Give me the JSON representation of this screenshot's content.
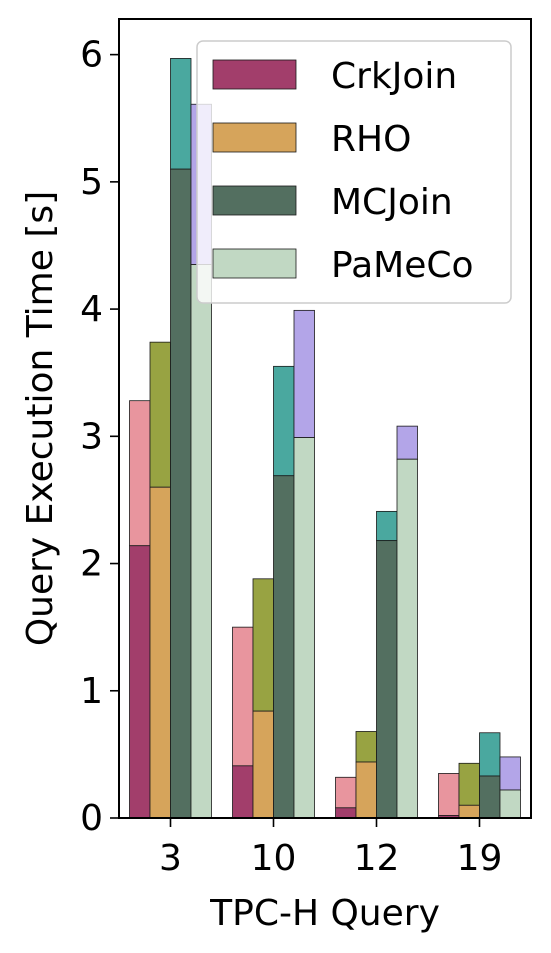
{
  "chart_data": {
    "type": "bar",
    "xlabel": "TPC-H Query",
    "ylabel": "Query Execution Time [s]",
    "categories": [
      "3",
      "10",
      "12",
      "19"
    ],
    "ylim": [
      0,
      6.28
    ],
    "yticks": [
      "0",
      "1",
      "2",
      "3",
      "4",
      "5",
      "6"
    ],
    "grid": false,
    "legend_position": "top-right",
    "series": [
      {
        "name": "CrkJoin",
        "values": [
          2.14,
          0.41,
          0.08,
          0.02
        ],
        "totals": [
          3.28,
          1.5,
          0.32,
          0.35
        ],
        "color": "#a23e6b",
        "top_color": "#e8959e"
      },
      {
        "name": "RHO",
        "values": [
          2.6,
          0.84,
          0.44,
          0.1
        ],
        "totals": [
          3.74,
          1.88,
          0.68,
          0.43
        ],
        "color": "#d6a45b",
        "top_color": "#98a342"
      },
      {
        "name": "MCJoin",
        "values": [
          5.1,
          2.69,
          2.18,
          0.33
        ],
        "totals": [
          5.97,
          3.55,
          2.41,
          0.67
        ],
        "color": "#536f60",
        "top_color": "#4aa89f"
      },
      {
        "name": "PaMeCo",
        "values": [
          4.35,
          2.99,
          2.82,
          0.22
        ],
        "totals": [
          5.61,
          3.99,
          3.08,
          0.48
        ],
        "color": "#c1d8c3",
        "top_color": "#b3a5e8"
      }
    ]
  }
}
